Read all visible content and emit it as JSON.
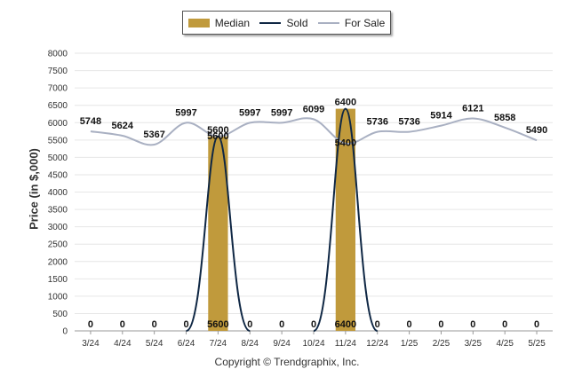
{
  "chart_data": {
    "type": "bar+line",
    "categories": [
      "3/24",
      "4/24",
      "5/24",
      "6/24",
      "7/24",
      "8/24",
      "9/24",
      "10/24",
      "11/24",
      "12/24",
      "1/25",
      "2/25",
      "3/25",
      "4/25",
      "5/25"
    ],
    "series": [
      {
        "name": "Median",
        "type": "bar",
        "values": [
          0,
          0,
          0,
          0,
          5600,
          0,
          0,
          0,
          6400,
          0,
          0,
          0,
          0,
          0,
          0
        ]
      },
      {
        "name": "Sold",
        "type": "line",
        "values": [
          0,
          0,
          0,
          0,
          5600,
          0,
          0,
          0,
          6400,
          0,
          0,
          0,
          0,
          0,
          0
        ]
      },
      {
        "name": "For Sale",
        "type": "line",
        "values": [
          5748,
          5624,
          5367,
          5997,
          5600,
          5997,
          5997,
          6099,
          5400,
          5736,
          5736,
          5914,
          6121,
          5858,
          5490
        ]
      }
    ],
    "bar_labels": [
      "0",
      "0",
      "0",
      "0",
      "5600",
      "0",
      "0",
      "0",
      "6400",
      "0",
      "0",
      "0",
      "0",
      "0",
      "0"
    ],
    "forsale_labels": [
      "5748",
      "5624",
      "5367",
      "5997",
      "5600",
      "5997",
      "5997",
      "6099",
      "5400",
      "5736",
      "5736",
      "5914",
      "6121",
      "5858",
      "5490"
    ],
    "top_labels": {
      "4": "5600",
      "8": "6400"
    },
    "yticks": [
      "0",
      "500",
      "1000",
      "1500",
      "2000",
      "2500",
      "3000",
      "3500",
      "4000",
      "4500",
      "5000",
      "5500",
      "6000",
      "6500",
      "7000",
      "7500",
      "8000"
    ],
    "ylim": [
      0,
      8000
    ],
    "ylabel": "Price (in $,000)",
    "xlabel": "",
    "grid": true,
    "legend_position": "top-center",
    "colors": {
      "median": "#c09a3c",
      "sold": "#0f2744",
      "for_sale": "#a9b0c2",
      "grid": "#e6e6e6"
    }
  },
  "legend": {
    "median": "Median",
    "sold": "Sold",
    "for_sale": "For Sale"
  },
  "footer": "Copyright © Trendgraphix, Inc."
}
